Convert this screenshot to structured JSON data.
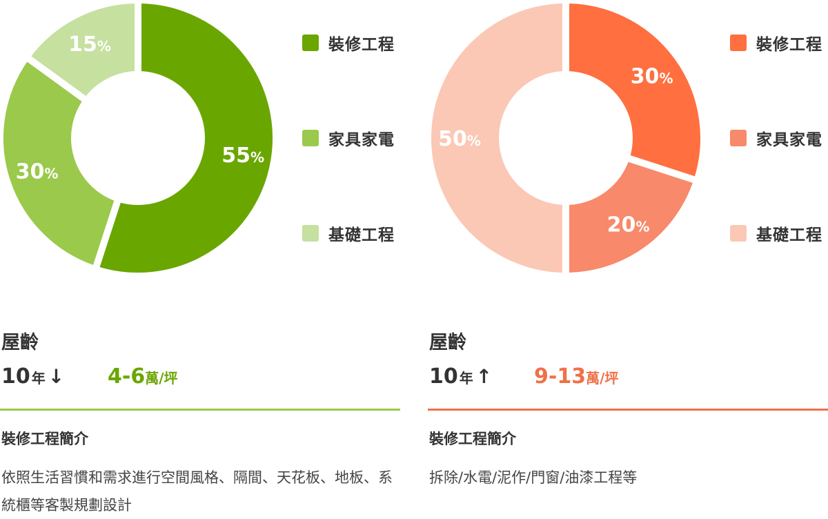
{
  "colors": {
    "left": {
      "accent": "#6aa600",
      "slices": [
        "#6aa600",
        "#9bc94b",
        "#c6e09f"
      ]
    },
    "right": {
      "accent": "#f07047",
      "slices": [
        "#ff6f3f",
        "#f8896a",
        "#fbc8b6"
      ]
    }
  },
  "chart_data": [
    {
      "type": "pie",
      "donut": true,
      "categories": [
        "裝修工程",
        "家具家電",
        "基礎工程"
      ],
      "values": [
        55,
        30,
        15
      ],
      "labels": [
        "55%",
        "30%",
        "15%"
      ],
      "legend_placement": "right"
    },
    {
      "type": "pie",
      "donut": true,
      "categories": [
        "裝修工程",
        "家具家電",
        "基礎工程"
      ],
      "values": [
        30,
        20,
        50
      ],
      "labels": [
        "30%",
        "20%",
        "50%"
      ],
      "legend_placement": "right"
    }
  ],
  "left": {
    "legend": [
      "裝修工程",
      "家具家電",
      "基礎工程"
    ],
    "age_title": "屋齡",
    "age_number": "10",
    "age_unit": "年",
    "age_arrow": "↓",
    "price_range": "4-6",
    "price_unit": "萬/坪",
    "intro_title": "裝修工程簡介",
    "intro_text": "依照生活習慣和需求進行空間風格、隔間、天花板、地板、系統櫃等客製規劃設計"
  },
  "right": {
    "legend": [
      "裝修工程",
      "家具家電",
      "基礎工程"
    ],
    "age_title": "屋齡",
    "age_number": "10",
    "age_unit": "年",
    "age_arrow": "↑",
    "price_range": "9-13",
    "price_unit": "萬/坪",
    "intro_title": "裝修工程簡介",
    "intro_text": "拆除/水電/泥作/門窗/油漆工程等"
  }
}
